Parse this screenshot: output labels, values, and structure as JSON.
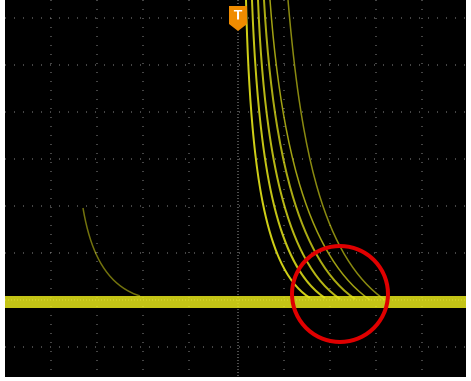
{
  "trigger_marker": {
    "label": "T"
  }
}
